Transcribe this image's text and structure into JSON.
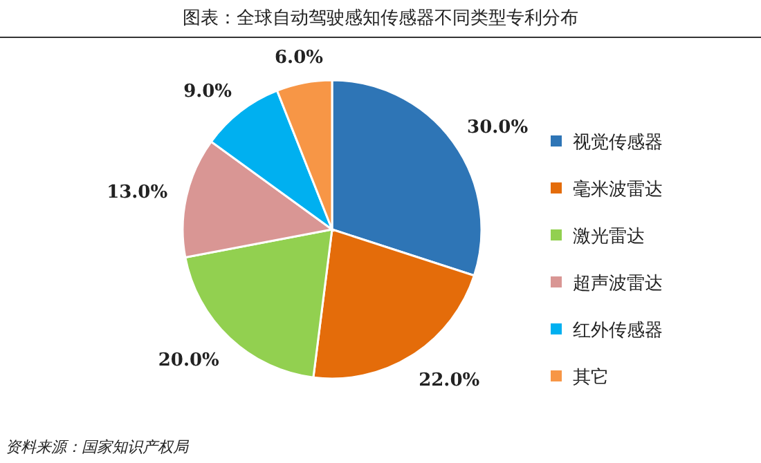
{
  "chart_data": {
    "type": "pie",
    "title": "图表：全球自动驾驶感知传感器不同类型专利分布",
    "categories": [
      "视觉传感器",
      "毫米波雷达",
      "激光雷达",
      "超声波雷达",
      "红外传感器",
      "其它"
    ],
    "values": [
      30,
      22,
      20,
      13,
      9,
      6
    ],
    "value_labels": [
      "30.0%",
      "22.0%",
      "20.0%",
      "13.0%",
      "9.0%",
      "6.0%"
    ],
    "colors": [
      "#2e75b6",
      "#e46c0a",
      "#92d050",
      "#d99694",
      "#00b0f0",
      "#f79646"
    ],
    "legend": "right",
    "annotations": [
      "资料来源：国家知识产权局"
    ]
  }
}
